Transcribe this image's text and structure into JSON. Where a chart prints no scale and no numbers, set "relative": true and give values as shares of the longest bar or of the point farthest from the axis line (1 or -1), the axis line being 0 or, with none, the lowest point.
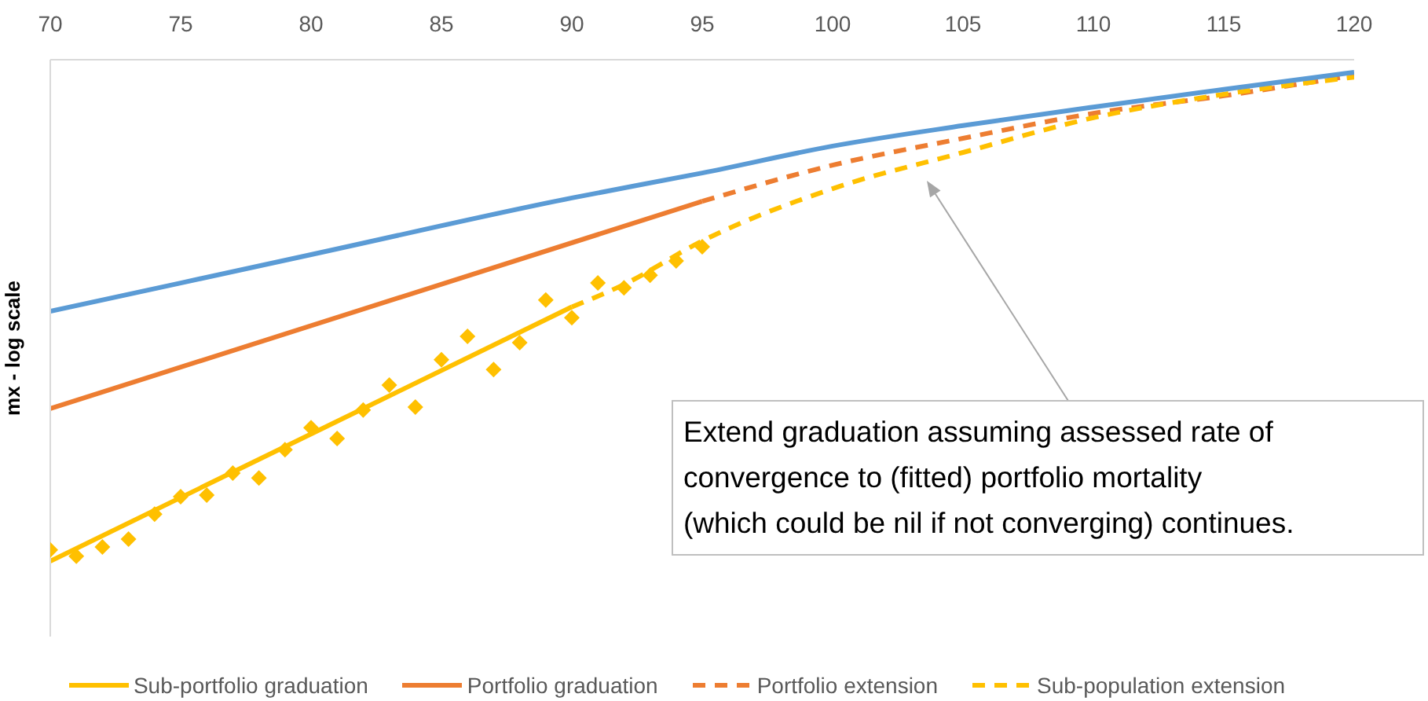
{
  "chart_data": {
    "type": "line",
    "ylabel": "mx - log scale",
    "relative": true,
    "xlim": [
      70,
      120
    ],
    "xticks": [
      70,
      75,
      80,
      85,
      90,
      95,
      100,
      105,
      110,
      115,
      120
    ],
    "grid": false,
    "legend": "bottom",
    "marker": "none",
    "series": [
      {
        "name": "Sub-portfolio graduation",
        "color": "#ffc000",
        "line_style": "solid",
        "x": [
          70,
          90
        ],
        "values": [
          0,
          0.52
        ]
      },
      {
        "name": "Portfolio graduation",
        "color": "#ed7d31",
        "line_style": "solid",
        "x": [
          70,
          95
        ],
        "values": [
          0.312,
          0.736
        ]
      },
      {
        "name": "Portfolio extension",
        "color": "#ed7d31",
        "line_style": "dashed",
        "x": [
          95,
          100,
          105,
          110,
          115,
          120
        ],
        "values": [
          0.736,
          0.81,
          0.865,
          0.916,
          0.952,
          0.994
        ]
      },
      {
        "name": "Sub-population extension",
        "color": "#ffc000",
        "line_style": "dashed",
        "x": [
          90,
          92,
          95,
          100,
          105,
          110,
          115,
          120
        ],
        "values": [
          0.52,
          0.566,
          0.655,
          0.762,
          0.836,
          0.907,
          0.955,
          0.99
        ]
      },
      {
        "color": "#5b9bd5",
        "line_style": "solid",
        "x": [
          70,
          80,
          90,
          95,
          100,
          105,
          110,
          115,
          120
        ],
        "values": [
          0.511,
          0.627,
          0.743,
          0.794,
          0.849,
          0.891,
          0.929,
          0.965,
          1
        ]
      },
      {
        "type": "scatter",
        "color": "#ffc000",
        "marker": "diamond",
        "x": [
          70,
          71,
          72,
          73,
          74,
          75,
          76,
          77,
          78,
          79,
          80,
          81,
          82,
          83,
          84,
          85,
          86,
          87,
          88,
          89,
          90,
          91,
          92,
          93,
          94,
          95
        ],
        "values": [
          0.023,
          0.01,
          0.029,
          0.045,
          0.096,
          0.132,
          0.135,
          0.18,
          0.17,
          0.228,
          0.273,
          0.251,
          0.309,
          0.36,
          0.315,
          0.412,
          0.46,
          0.392,
          0.447,
          0.534,
          0.498,
          0.569,
          0.559,
          0.585,
          0.614,
          0.643
        ]
      }
    ],
    "annotations": [
      "Extend graduation assuming assessed rate of convergence to (fitted) portfolio mortality (which could be nil if not converging) continues."
    ]
  }
}
